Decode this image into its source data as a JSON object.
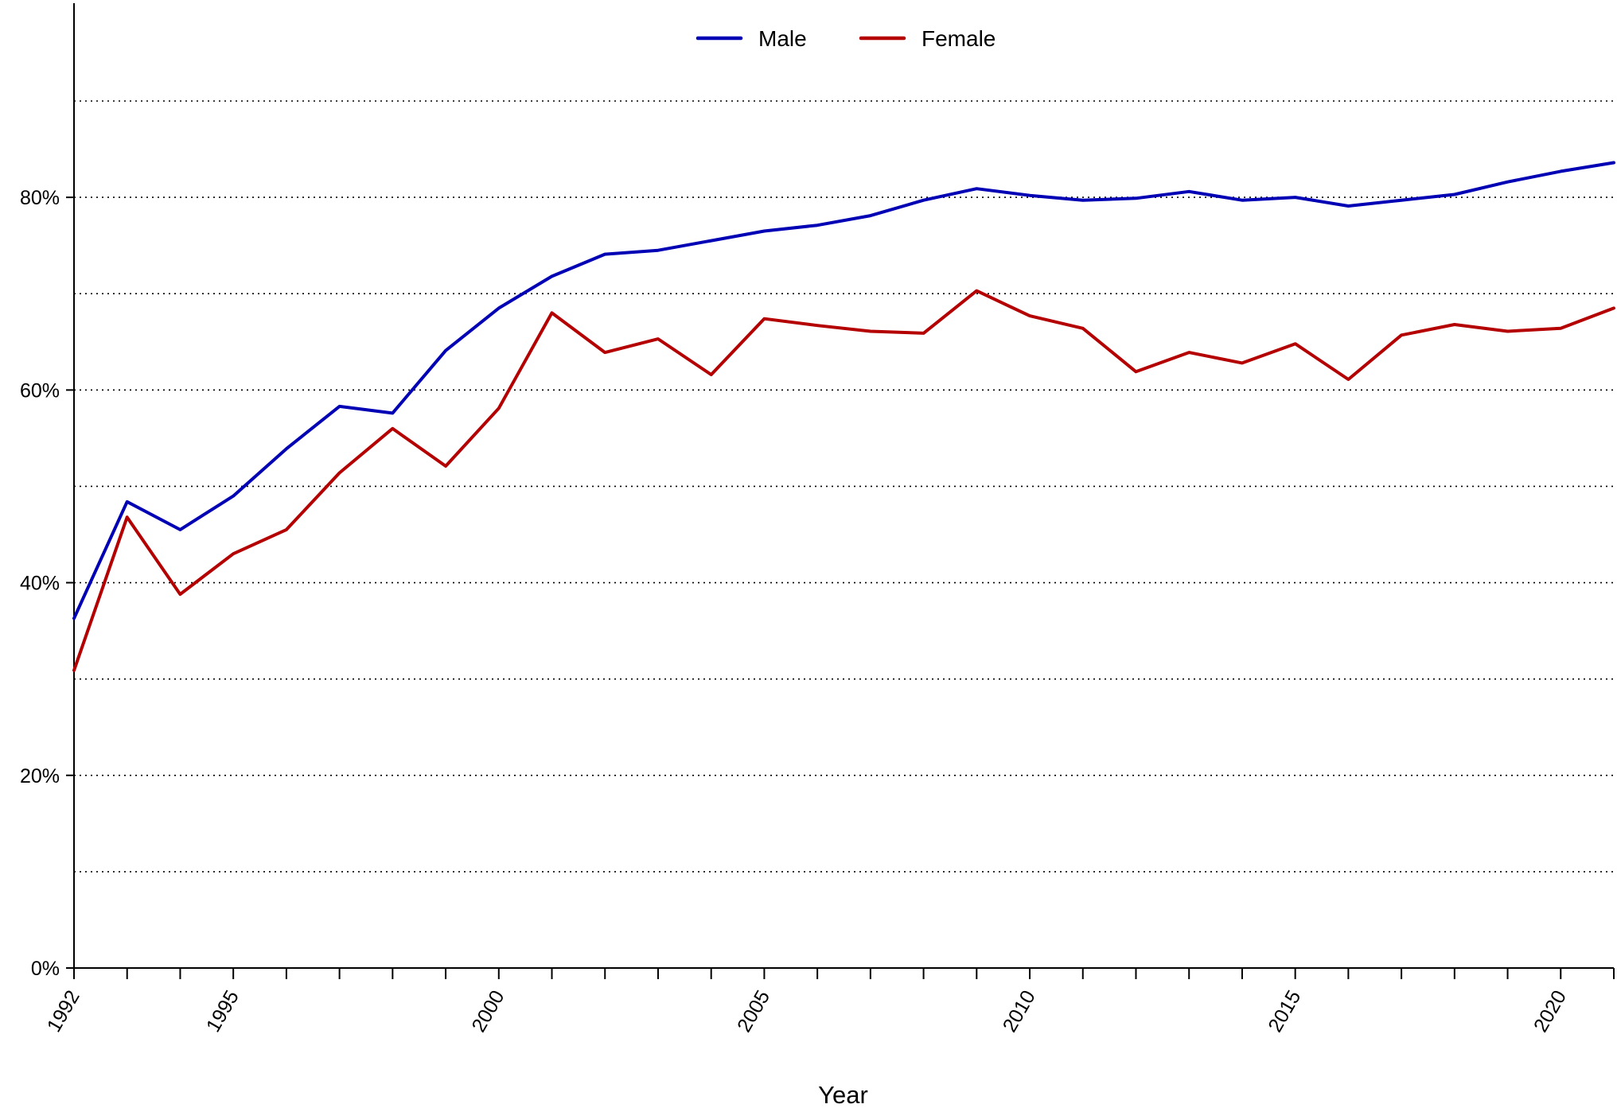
{
  "chart_data": {
    "type": "line",
    "title": "",
    "xlabel": "Year",
    "ylabel": "",
    "x": [
      1992,
      1993,
      1994,
      1995,
      1996,
      1997,
      1998,
      1999,
      2000,
      2001,
      2002,
      2003,
      2004,
      2005,
      2006,
      2007,
      2008,
      2009,
      2010,
      2011,
      2012,
      2013,
      2014,
      2015,
      2016,
      2017,
      2018,
      2019,
      2020,
      2021
    ],
    "xlim": [
      1992,
      2021
    ],
    "x_ticks": [
      1992,
      1993,
      1994,
      1995,
      1996,
      1997,
      1998,
      1999,
      2000,
      2001,
      2002,
      2003,
      2004,
      2005,
      2006,
      2007,
      2008,
      2009,
      2010,
      2011,
      2012,
      2013,
      2014,
      2015,
      2016,
      2017,
      2018,
      2019,
      2020,
      2021
    ],
    "x_tick_labels": [
      "1992",
      "1995",
      "2000",
      "2005",
      "2010",
      "2015",
      "2020"
    ],
    "x_tick_label_values": [
      1992,
      1995,
      2000,
      2005,
      2010,
      2015,
      2020
    ],
    "ylim": [
      0,
      99
    ],
    "y_tick_values": [
      0,
      20,
      40,
      60,
      80
    ],
    "y_tick_labels": [
      "0%",
      "20%",
      "40%",
      "60%",
      "80%"
    ],
    "y_gridlines": [
      10,
      20,
      30,
      40,
      50,
      60,
      70,
      80,
      90
    ],
    "grid": "horizontal dotted",
    "legend_position": "top-center",
    "series": [
      {
        "name": "Male",
        "color": "#0000b4",
        "values": [
          36.3,
          48.4,
          45.5,
          49.0,
          53.9,
          58.3,
          57.6,
          64.1,
          68.5,
          71.8,
          74.1,
          74.5,
          75.5,
          76.5,
          77.1,
          78.1,
          79.7,
          80.9,
          80.2,
          79.7,
          79.9,
          80.6,
          79.7,
          80.0,
          79.1,
          79.7,
          80.3,
          81.6,
          82.7,
          83.6
        ]
      },
      {
        "name": "Female",
        "color": "#b40000",
        "values": [
          30.9,
          46.8,
          38.8,
          43.0,
          45.5,
          51.4,
          56.0,
          52.1,
          58.1,
          68.0,
          63.9,
          65.3,
          61.6,
          67.4,
          66.7,
          66.1,
          65.9,
          70.3,
          67.7,
          66.4,
          61.9,
          63.9,
          62.8,
          64.8,
          61.1,
          65.7,
          66.8,
          66.1,
          66.4,
          68.5
        ]
      }
    ]
  }
}
